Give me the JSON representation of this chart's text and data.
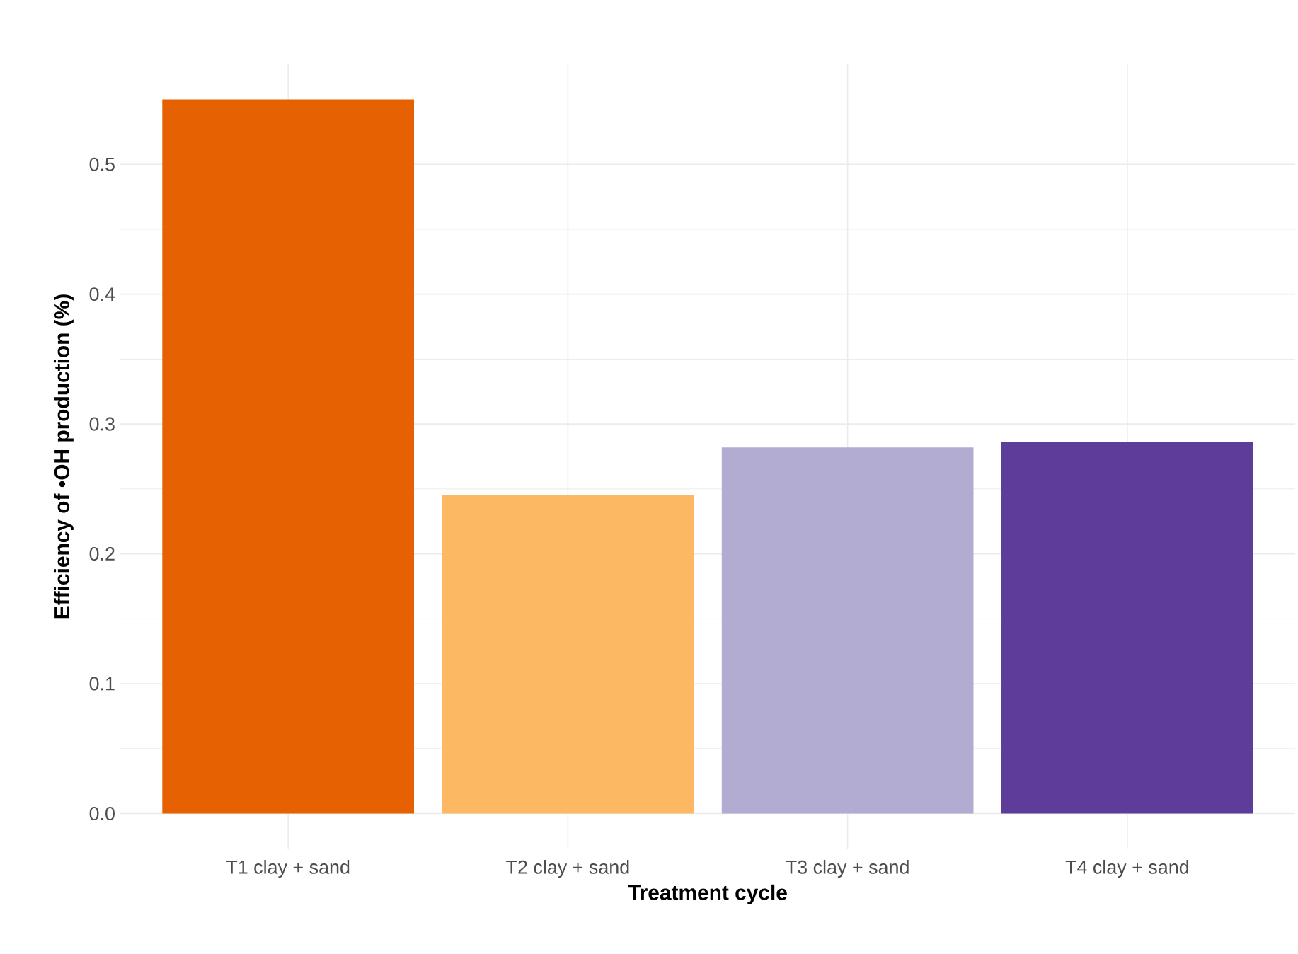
{
  "chart_data": {
    "type": "bar",
    "xlabel": "Treatment cycle",
    "ylabel": "Efficiency of •OH production (%)",
    "categories": [
      "T1 clay + sand",
      "T2 clay + sand",
      "T3 clay + sand",
      "T4 clay + sand"
    ],
    "values": [
      0.55,
      0.245,
      0.282,
      0.286
    ],
    "colors": [
      "#e66101",
      "#fdb863",
      "#b2abd2",
      "#5e3c99"
    ],
    "ylim": [
      -0.0275,
      0.5775
    ],
    "yticks": [
      {
        "value": 0,
        "label": "0.0"
      },
      0.1,
      0.2,
      0.3,
      0.4,
      0.5
    ],
    "grid": true
  }
}
